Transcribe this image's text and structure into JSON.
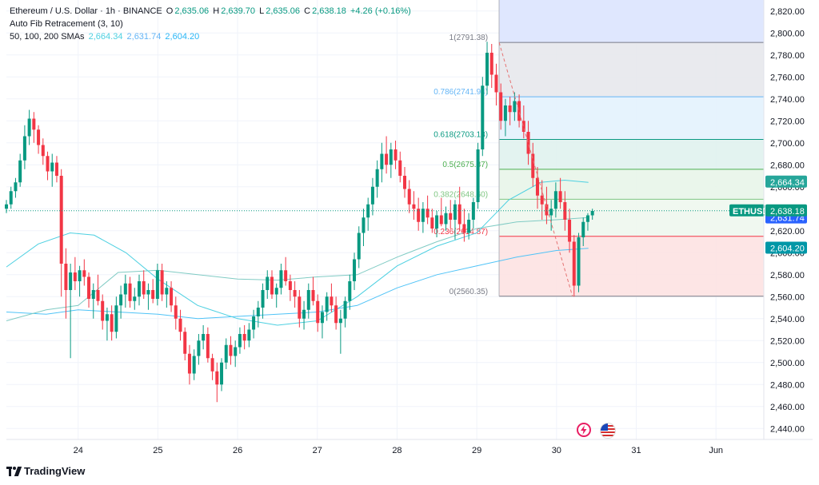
{
  "header": {
    "symbol": "Ethereum / U.S. Dollar · 1h · BINANCE",
    "o_label": "O",
    "o": "2,635.06",
    "h_label": "H",
    "h": "2,639.70",
    "l_label": "L",
    "l": "2,635.06",
    "c_label": "C",
    "c": "2,638.18",
    "change": "+4.26 (+0.16%)",
    "indicator1": "Auto Fib Retracement (3, 10)",
    "indicator2": "50, 100, 200 SMAs",
    "sma50": "2,664.34",
    "sma100": "2,631.74",
    "sma200": "2,604.20"
  },
  "brand": "TradingView",
  "colors": {
    "up": "#089981",
    "down": "#f23645",
    "grid": "#f0f3fa",
    "axis_text": "#131722"
  },
  "chart_data": {
    "type": "candlestick",
    "ylim": [
      2430,
      2830
    ],
    "y_ticks": [
      2440,
      2460,
      2480,
      2500,
      2520,
      2540,
      2560,
      2580,
      2600,
      2620,
      2640,
      2660,
      2680,
      2700,
      2720,
      2740,
      2760,
      2780,
      2800,
      2820
    ],
    "y_tick_labels": [
      "2,440.00",
      "2,460.00",
      "2,480.00",
      "2,500.00",
      "2,520.00",
      "2,540.00",
      "2,560.00",
      "2,580.00",
      "2,600.00",
      "2,620.00",
      "2,640.00",
      "2,660.00",
      "2,680.00",
      "2,700.00",
      "2,720.00",
      "2,740.00",
      "2,760.00",
      "2,780.00",
      "2,800.00",
      "2,820.00"
    ],
    "x_labels": [
      "24",
      "25",
      "26",
      "27",
      "28",
      "29",
      "30",
      "31",
      "Jun"
    ],
    "x_label_days": [
      24,
      25,
      26,
      27,
      28,
      29,
      30,
      31,
      32
    ],
    "x_start_day": 23.1,
    "x_end_day": 32.6,
    "last_price": 2638.18,
    "last_label": "ETHUSD",
    "last_price_label": "2,638.18",
    "sma_labels": [
      {
        "value": 2664.34,
        "label": "2,664.34",
        "color": "#26a69a"
      },
      {
        "value": 2631.74,
        "label": "2,631.74",
        "color": "#2962ff"
      },
      {
        "value": 2604.2,
        "label": "2,604.20",
        "color": "#0097a7"
      }
    ],
    "fib_levels": [
      {
        "ratio": 1,
        "value": 2791.38,
        "label": "1(2791.38)",
        "color": "#787b86",
        "fill": "#e7e8ec"
      },
      {
        "ratio": 0.786,
        "value": 2741.94,
        "label": "0.786(2741.94)",
        "color": "#64b5f6",
        "fill": "#e3f2fd"
      },
      {
        "ratio": 0.618,
        "value": 2703.13,
        "label": "0.618(2703.13)",
        "color": "#089981",
        "fill": "#e0f2ee"
      },
      {
        "ratio": 0.5,
        "value": 2675.87,
        "label": "0.5(2675.87)",
        "color": "#4caf50",
        "fill": "#e8f5e9"
      },
      {
        "ratio": 0.382,
        "value": 2648.6,
        "label": "0.382(2648.60)",
        "color": "#81c784",
        "fill": "#eef7ee"
      },
      {
        "ratio": 0.236,
        "value": 2614.87,
        "label": "0.236(2614.87)",
        "color": "#f23645",
        "fill": "#fde2e2"
      },
      {
        "ratio": 0,
        "value": 2560.35,
        "label": "0(2560.35)",
        "color": "#787b86",
        "fill": "none"
      }
    ],
    "fib_top_fill": {
      "to": 2830,
      "fill": "#dfe7fe"
    },
    "fib_start_day": 29.28,
    "fib_end_day": 32.7,
    "candles": [
      [
        2640,
        2648,
        2636,
        2644
      ],
      [
        2644,
        2660,
        2640,
        2656
      ],
      [
        2656,
        2668,
        2650,
        2664
      ],
      [
        2664,
        2690,
        2660,
        2684
      ],
      [
        2684,
        2716,
        2676,
        2706
      ],
      [
        2706,
        2730,
        2698,
        2722
      ],
      [
        2722,
        2728,
        2700,
        2712
      ],
      [
        2712,
        2716,
        2690,
        2698
      ],
      [
        2698,
        2704,
        2680,
        2688
      ],
      [
        2688,
        2692,
        2666,
        2674
      ],
      [
        2674,
        2690,
        2660,
        2682
      ],
      [
        2682,
        2688,
        2664,
        2670
      ],
      [
        2670,
        2676,
        2560,
        2590
      ],
      [
        2590,
        2604,
        2540,
        2566
      ],
      [
        2566,
        2590,
        2504,
        2582
      ],
      [
        2582,
        2596,
        2566,
        2574
      ],
      [
        2574,
        2588,
        2560,
        2584
      ],
      [
        2584,
        2594,
        2570,
        2578
      ],
      [
        2578,
        2582,
        2550,
        2558
      ],
      [
        2558,
        2572,
        2540,
        2566
      ],
      [
        2566,
        2580,
        2552,
        2556
      ],
      [
        2556,
        2562,
        2530,
        2538
      ],
      [
        2538,
        2550,
        2520,
        2544
      ],
      [
        2544,
        2552,
        2520,
        2528
      ],
      [
        2528,
        2560,
        2522,
        2552
      ],
      [
        2552,
        2570,
        2540,
        2562
      ],
      [
        2562,
        2580,
        2550,
        2572
      ],
      [
        2572,
        2578,
        2550,
        2556
      ],
      [
        2556,
        2568,
        2548,
        2560
      ],
      [
        2560,
        2580,
        2552,
        2574
      ],
      [
        2574,
        2584,
        2558,
        2562
      ],
      [
        2562,
        2572,
        2548,
        2566
      ],
      [
        2566,
        2576,
        2554,
        2558
      ],
      [
        2558,
        2590,
        2552,
        2584
      ],
      [
        2584,
        2590,
        2556,
        2562
      ],
      [
        2562,
        2574,
        2550,
        2568
      ],
      [
        2568,
        2574,
        2546,
        2552
      ],
      [
        2552,
        2560,
        2530,
        2540
      ],
      [
        2540,
        2548,
        2520,
        2528
      ],
      [
        2528,
        2532,
        2502,
        2508
      ],
      [
        2508,
        2516,
        2480,
        2490
      ],
      [
        2490,
        2512,
        2484,
        2506
      ],
      [
        2506,
        2526,
        2498,
        2520
      ],
      [
        2520,
        2534,
        2512,
        2526
      ],
      [
        2526,
        2532,
        2500,
        2504
      ],
      [
        2504,
        2508,
        2484,
        2492
      ],
      [
        2492,
        2500,
        2464,
        2480
      ],
      [
        2480,
        2504,
        2474,
        2500
      ],
      [
        2500,
        2522,
        2494,
        2516
      ],
      [
        2516,
        2524,
        2498,
        2506
      ],
      [
        2506,
        2520,
        2496,
        2514
      ],
      [
        2514,
        2532,
        2508,
        2526
      ],
      [
        2526,
        2534,
        2512,
        2520
      ],
      [
        2520,
        2536,
        2514,
        2530
      ],
      [
        2530,
        2548,
        2522,
        2542
      ],
      [
        2542,
        2556,
        2532,
        2550
      ],
      [
        2550,
        2572,
        2540,
        2566
      ],
      [
        2566,
        2584,
        2558,
        2578
      ],
      [
        2578,
        2584,
        2558,
        2562
      ],
      [
        2562,
        2572,
        2550,
        2568
      ],
      [
        2568,
        2590,
        2562,
        2584
      ],
      [
        2584,
        2596,
        2570,
        2574
      ],
      [
        2574,
        2580,
        2556,
        2566
      ],
      [
        2566,
        2574,
        2550,
        2560
      ],
      [
        2560,
        2566,
        2532,
        2540
      ],
      [
        2540,
        2556,
        2530,
        2548
      ],
      [
        2548,
        2572,
        2540,
        2566
      ],
      [
        2566,
        2578,
        2552,
        2556
      ],
      [
        2556,
        2562,
        2528,
        2536
      ],
      [
        2536,
        2552,
        2522,
        2546
      ],
      [
        2546,
        2564,
        2538,
        2560
      ],
      [
        2560,
        2572,
        2546,
        2552
      ],
      [
        2552,
        2560,
        2530,
        2536
      ],
      [
        2536,
        2548,
        2508,
        2540
      ],
      [
        2540,
        2560,
        2532,
        2556
      ],
      [
        2556,
        2580,
        2548,
        2574
      ],
      [
        2574,
        2600,
        2566,
        2594
      ],
      [
        2594,
        2624,
        2586,
        2618
      ],
      [
        2618,
        2640,
        2606,
        2632
      ],
      [
        2632,
        2650,
        2620,
        2644
      ],
      [
        2644,
        2668,
        2634,
        2660
      ],
      [
        2660,
        2684,
        2650,
        2676
      ],
      [
        2676,
        2700,
        2664,
        2690
      ],
      [
        2690,
        2706,
        2672,
        2680
      ],
      [
        2680,
        2700,
        2668,
        2694
      ],
      [
        2694,
        2702,
        2676,
        2684
      ],
      [
        2684,
        2692,
        2664,
        2670
      ],
      [
        2670,
        2678,
        2650,
        2658
      ],
      [
        2658,
        2666,
        2636,
        2644
      ],
      [
        2644,
        2656,
        2630,
        2640
      ],
      [
        2640,
        2650,
        2620,
        2628
      ],
      [
        2628,
        2646,
        2618,
        2640
      ],
      [
        2640,
        2652,
        2626,
        2632
      ],
      [
        2632,
        2640,
        2618,
        2622
      ],
      [
        2622,
        2638,
        2614,
        2634
      ],
      [
        2634,
        2650,
        2624,
        2626
      ],
      [
        2626,
        2642,
        2620,
        2636
      ],
      [
        2636,
        2648,
        2622,
        2630
      ],
      [
        2630,
        2648,
        2612,
        2644
      ],
      [
        2644,
        2660,
        2620,
        2626
      ],
      [
        2626,
        2640,
        2610,
        2618
      ],
      [
        2618,
        2636,
        2612,
        2630
      ],
      [
        2630,
        2650,
        2622,
        2646
      ],
      [
        2646,
        2700,
        2640,
        2694
      ],
      [
        2694,
        2760,
        2688,
        2752
      ],
      [
        2752,
        2792,
        2744,
        2782
      ],
      [
        2782,
        2790,
        2750,
        2762
      ],
      [
        2762,
        2772,
        2734,
        2746
      ],
      [
        2746,
        2754,
        2712,
        2720
      ],
      [
        2720,
        2740,
        2706,
        2734
      ],
      [
        2734,
        2742,
        2716,
        2728
      ],
      [
        2728,
        2746,
        2720,
        2738
      ],
      [
        2738,
        2744,
        2714,
        2720
      ],
      [
        2720,
        2734,
        2704,
        2710
      ],
      [
        2710,
        2720,
        2680,
        2690
      ],
      [
        2690,
        2700,
        2660,
        2668
      ],
      [
        2668,
        2678,
        2640,
        2652
      ],
      [
        2652,
        2666,
        2630,
        2644
      ],
      [
        2644,
        2660,
        2626,
        2634
      ],
      [
        2634,
        2648,
        2620,
        2640
      ],
      [
        2640,
        2664,
        2632,
        2656
      ],
      [
        2656,
        2668,
        2640,
        2646
      ],
      [
        2646,
        2656,
        2620,
        2630
      ],
      [
        2630,
        2640,
        2600,
        2610
      ],
      [
        2610,
        2616,
        2560,
        2570
      ],
      [
        2570,
        2618,
        2564,
        2614
      ],
      [
        2614,
        2632,
        2606,
        2628
      ],
      [
        2628,
        2636,
        2620,
        2634
      ],
      [
        2634,
        2640,
        2630,
        2638
      ]
    ],
    "sma50_path": [
      [
        23.1,
        2587
      ],
      [
        23.5,
        2608
      ],
      [
        23.9,
        2618
      ],
      [
        24.2,
        2616
      ],
      [
        24.6,
        2600
      ],
      [
        25.0,
        2576
      ],
      [
        25.5,
        2552
      ],
      [
        26.0,
        2540
      ],
      [
        26.5,
        2534
      ],
      [
        27.0,
        2538
      ],
      [
        27.5,
        2560
      ],
      [
        28.0,
        2588
      ],
      [
        28.5,
        2606
      ],
      [
        29.0,
        2618
      ],
      [
        29.4,
        2648
      ],
      [
        29.8,
        2664
      ],
      [
        30.1,
        2666
      ],
      [
        30.4,
        2664
      ]
    ],
    "sma100_path": [
      [
        23.1,
        2538
      ],
      [
        23.6,
        2548
      ],
      [
        24.0,
        2552
      ],
      [
        24.5,
        2582
      ],
      [
        25.0,
        2584
      ],
      [
        25.5,
        2580
      ],
      [
        26.0,
        2576
      ],
      [
        26.5,
        2575
      ],
      [
        27.0,
        2578
      ],
      [
        27.5,
        2580
      ],
      [
        28.0,
        2596
      ],
      [
        28.5,
        2610
      ],
      [
        29.0,
        2622
      ],
      [
        29.5,
        2628
      ],
      [
        30.0,
        2630
      ],
      [
        30.4,
        2632
      ]
    ],
    "sma200_path": [
      [
        23.1,
        2546
      ],
      [
        23.6,
        2544
      ],
      [
        24.0,
        2548
      ],
      [
        24.5,
        2546
      ],
      [
        25.0,
        2544
      ],
      [
        25.5,
        2540
      ],
      [
        26.0,
        2542
      ],
      [
        26.5,
        2544
      ],
      [
        27.0,
        2546
      ],
      [
        27.5,
        2552
      ],
      [
        28.0,
        2568
      ],
      [
        28.5,
        2580
      ],
      [
        29.0,
        2588
      ],
      [
        29.5,
        2596
      ],
      [
        30.0,
        2602
      ],
      [
        30.4,
        2604
      ]
    ],
    "dashed_segment": [
      [
        29.28,
        2791.38
      ],
      [
        30.2,
        2560.35
      ]
    ]
  }
}
